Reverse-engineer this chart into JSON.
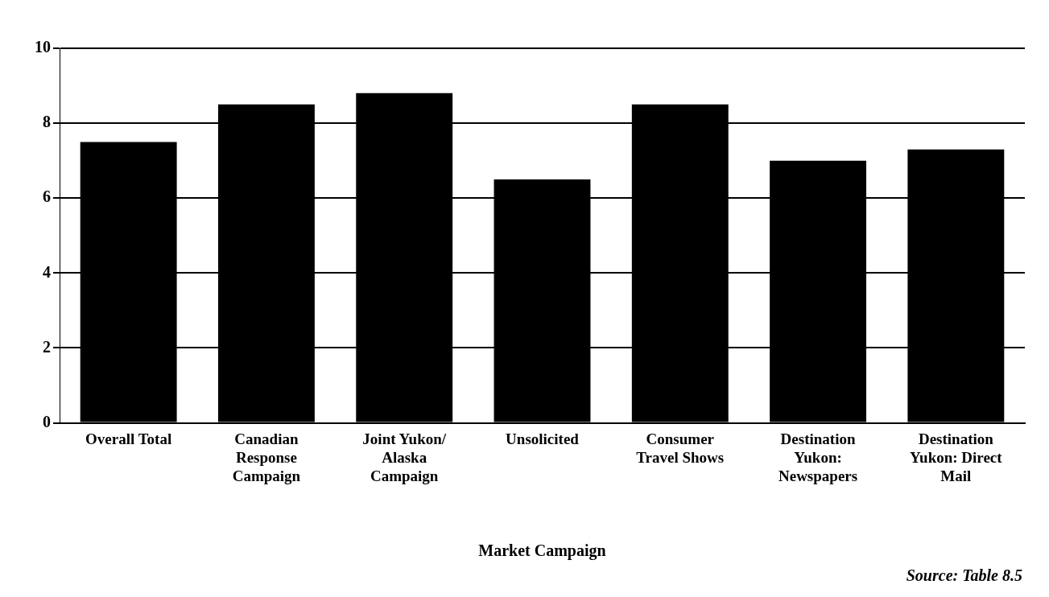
{
  "chart_data": {
    "type": "bar",
    "xlabel": "Market Campaign",
    "categories": [
      "Overall Total",
      "Canadian Response Campaign",
      "Joint Yukon/ Alaska Campaign",
      "Unsolicited",
      "Consumer Travel Shows",
      "Destination Yukon: Newspapers",
      "Destination Yukon: Direct Mail"
    ],
    "values": [
      7.5,
      8.5,
      8.8,
      6.5,
      8.5,
      7.0,
      7.3
    ],
    "color": "#000000",
    "ylim": [
      0,
      10
    ],
    "yticks": [
      0,
      2,
      4,
      6,
      8,
      10
    ],
    "grid": "y",
    "legend": false,
    "annotations": [
      "Source: Table 8.5"
    ]
  }
}
